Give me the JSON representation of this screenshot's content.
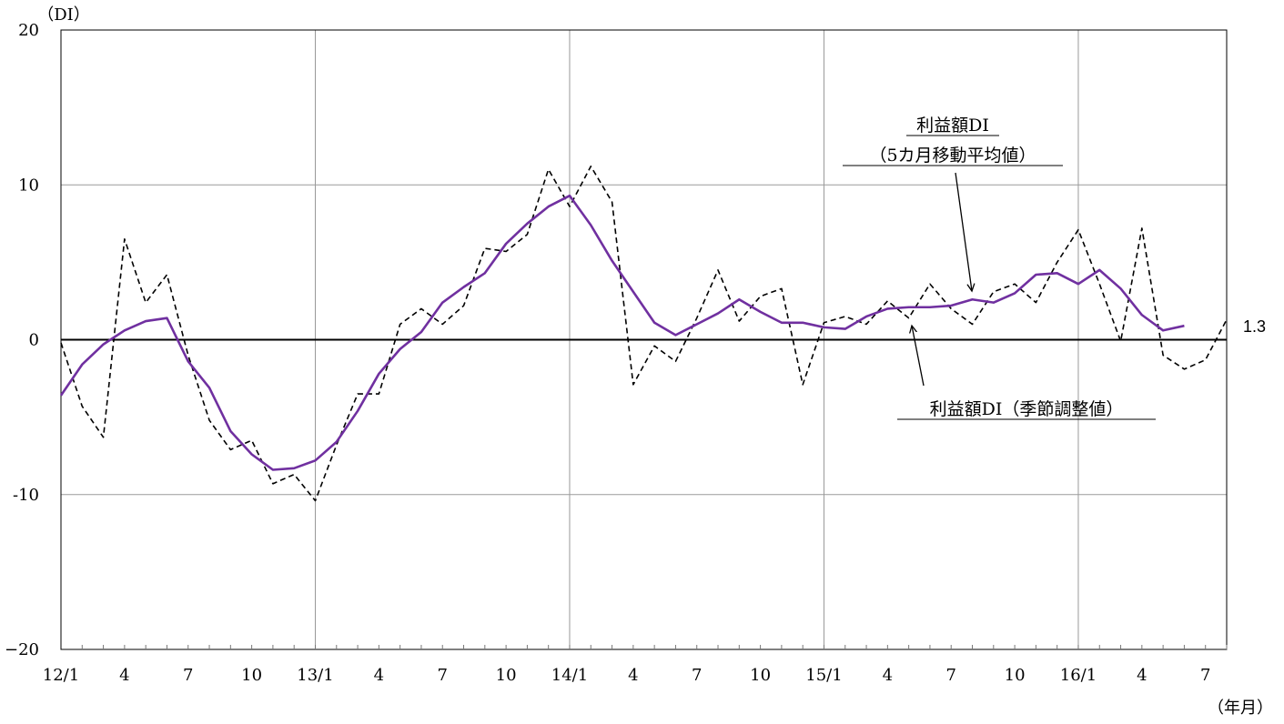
{
  "chart_data": {
    "type": "line",
    "y_unit": "（DI）",
    "x_unit": "（年月）",
    "ylim": [
      -20,
      20
    ],
    "y_ticks": [
      20,
      10,
      0,
      -10,
      -20
    ],
    "y_tick_labels": [
      "20",
      "10",
      "0",
      "-10",
      "−20"
    ],
    "x_tick_labels": [
      "12/1",
      "4",
      "7",
      "10",
      "13/1",
      "4",
      "7",
      "10",
      "14/1",
      "4",
      "7",
      "10",
      "15/1",
      "4",
      "7",
      "10",
      "16/1",
      "4",
      "7"
    ],
    "grid": true,
    "series": [
      {
        "name": "利益額DI（季節調整値）",
        "style": "dashed",
        "color": "#000000",
        "values": [
          -0.2,
          -4.3,
          -6.3,
          6.5,
          2.4,
          4.2,
          -1.0,
          -5.2,
          -7.1,
          -6.5,
          -9.3,
          -8.7,
          -10.4,
          -6.8,
          -3.5,
          -3.5,
          1.0,
          2.0,
          1.0,
          2.2,
          5.9,
          5.7,
          6.8,
          11.0,
          8.6,
          11.2,
          8.9,
          -2.9,
          -0.4,
          -1.4,
          1.4,
          4.5,
          1.2,
          2.8,
          3.3,
          -2.9,
          1.1,
          1.5,
          1.0,
          2.5,
          1.4,
          3.6,
          2.0,
          1.0,
          3.1,
          3.6,
          2.4,
          5.0,
          7.1,
          3.6,
          -0.1,
          7.2,
          -1.0,
          -1.9,
          -1.3,
          1.3
        ]
      },
      {
        "name": "利益額DI（5カ月移動平均値）",
        "style": "solid",
        "color": "#7030a0",
        "values": [
          -3.6,
          -1.6,
          -0.3,
          0.6,
          1.2,
          1.4,
          -1.4,
          -3.1,
          -5.9,
          -7.4,
          -8.4,
          -8.3,
          -7.8,
          -6.6,
          -4.6,
          -2.2,
          -0.6,
          0.5,
          2.4,
          3.4,
          4.3,
          6.2,
          7.5,
          8.6,
          9.3,
          7.4,
          5.1,
          3.1,
          1.1,
          0.3,
          1.0,
          1.7,
          2.6,
          1.8,
          1.1,
          1.1,
          0.8,
          0.7,
          1.5,
          2.0,
          2.1,
          2.1,
          2.2,
          2.6,
          2.4,
          3.0,
          4.2,
          4.3,
          3.6,
          4.5,
          3.3,
          1.6,
          0.6,
          0.9
        ]
      }
    ],
    "annotations": {
      "ma_label_line1": "利益額DI",
      "ma_label_line2": "（5カ月移動平均値）",
      "sa_label": "利益額DI（季節調整値）",
      "last_value": "1.3"
    }
  }
}
